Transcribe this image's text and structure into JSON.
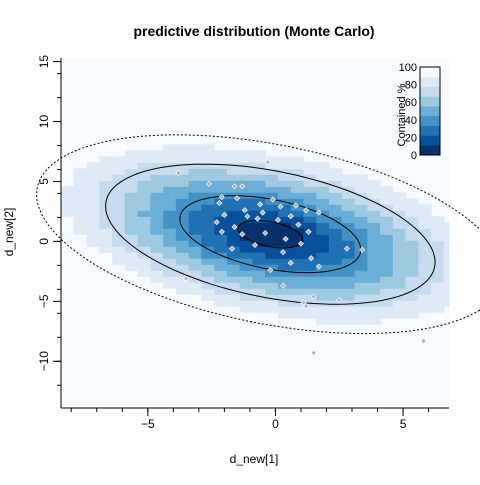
{
  "chart_data": {
    "type": "heatmap",
    "title": "predictive distribution (Monte Carlo)",
    "xlabel": "d_new[1]",
    "ylabel": "d_new[2]",
    "xlim": [
      -8.4,
      6.8
    ],
    "ylim": [
      -13.9,
      15.3
    ],
    "xticks": [
      -5,
      0,
      5
    ],
    "yticks": [
      -10,
      -5,
      0,
      5,
      10,
      15
    ],
    "grid": false,
    "legend": {
      "title": "Contained %",
      "position": "top-right",
      "ticks": [
        0,
        20,
        40,
        60,
        80,
        100
      ],
      "colors": [
        "#08306b",
        "#08519c",
        "#2171b5",
        "#4292c6",
        "#6baed6",
        "#9ecae1",
        "#c6dbef",
        "#deebf7",
        "#f7fbff"
      ]
    },
    "distribution": {
      "mean": [
        -0.2,
        0.6
      ],
      "sd_major": 3.4,
      "sd_minor": 2.2,
      "angle_deg": -38,
      "contours": [
        {
          "level": 50,
          "style": "solid"
        },
        {
          "level": 90,
          "style": "solid"
        },
        {
          "level": 99,
          "style": "dotted"
        }
      ]
    },
    "points": [
      {
        "x": -3.8,
        "y": 5.7
      },
      {
        "x": -0.3,
        "y": 6.6
      },
      {
        "x": -2.6,
        "y": 4.8
      },
      {
        "x": -1.3,
        "y": 4.6
      },
      {
        "x": -1.6,
        "y": 4.6
      },
      {
        "x": -2.1,
        "y": 3.7
      },
      {
        "x": -1.5,
        "y": 3.6
      },
      {
        "x": -2.2,
        "y": 3.2
      },
      {
        "x": -0.1,
        "y": 3.5
      },
      {
        "x": -0.6,
        "y": 3.1
      },
      {
        "x": 0.2,
        "y": 2.9
      },
      {
        "x": 0.8,
        "y": 3.0
      },
      {
        "x": -1.2,
        "y": 2.6
      },
      {
        "x": -2.0,
        "y": 2.2
      },
      {
        "x": -1.1,
        "y": 2.1
      },
      {
        "x": -0.5,
        "y": 2.4
      },
      {
        "x": 0.6,
        "y": 2.1
      },
      {
        "x": 1.2,
        "y": 2.6
      },
      {
        "x": 1.7,
        "y": 2.4
      },
      {
        "x": -2.3,
        "y": 1.6
      },
      {
        "x": -1.6,
        "y": 1.2
      },
      {
        "x": -0.7,
        "y": 1.9
      },
      {
        "x": 0.1,
        "y": 1.8
      },
      {
        "x": 0.9,
        "y": 1.4
      },
      {
        "x": 1.3,
        "y": 0.8
      },
      {
        "x": -2.1,
        "y": 0.8
      },
      {
        "x": -1.3,
        "y": 0.6
      },
      {
        "x": -0.4,
        "y": 0.7
      },
      {
        "x": 0.4,
        "y": 0.2
      },
      {
        "x": 1.0,
        "y": -0.2
      },
      {
        "x": -1.7,
        "y": -0.6
      },
      {
        "x": -0.8,
        "y": -0.3
      },
      {
        "x": 0.3,
        "y": -0.9
      },
      {
        "x": 1.4,
        "y": -1.4
      },
      {
        "x": 0.6,
        "y": -1.8
      },
      {
        "x": 1.7,
        "y": -2.1
      },
      {
        "x": -0.2,
        "y": -2.4
      },
      {
        "x": 2.8,
        "y": -0.6
      },
      {
        "x": 3.4,
        "y": -0.7
      },
      {
        "x": -3.5,
        "y": -3.1
      },
      {
        "x": 0.3,
        "y": -3.7
      },
      {
        "x": 1.5,
        "y": -4.6
      },
      {
        "x": 2.5,
        "y": -4.9
      },
      {
        "x": 1.1,
        "y": -5.1
      },
      {
        "x": 1.2,
        "y": -5.4
      },
      {
        "x": 5.8,
        "y": -8.3
      },
      {
        "x": 1.5,
        "y": -9.3
      }
    ]
  }
}
